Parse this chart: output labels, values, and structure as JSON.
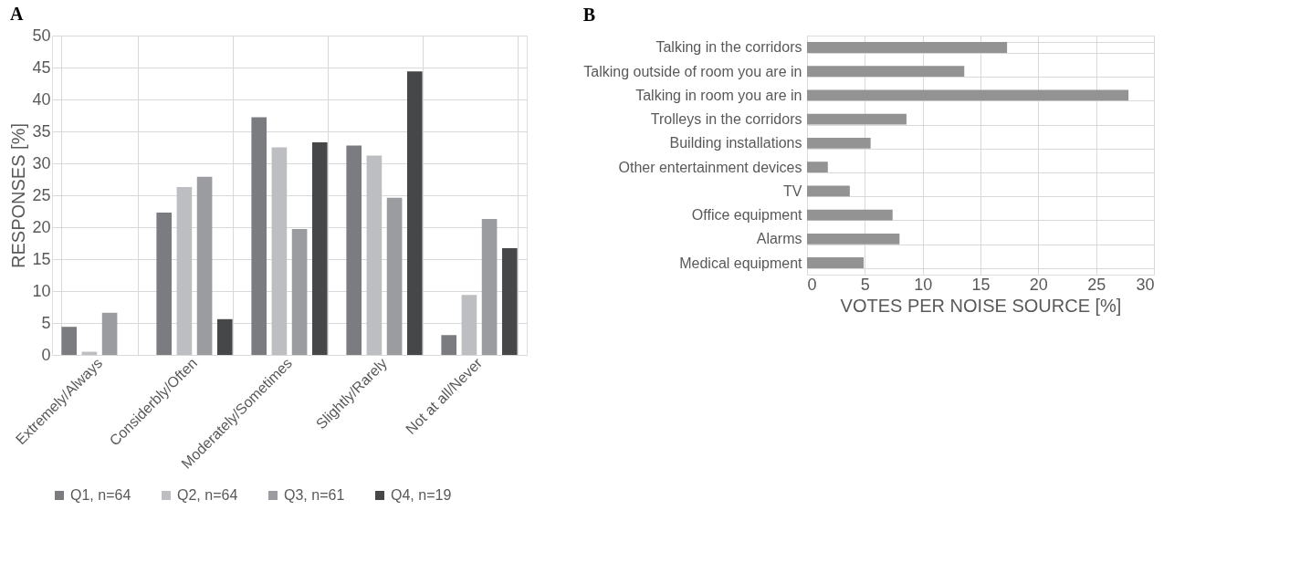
{
  "chart_data": [
    {
      "type": "bar",
      "title": "A",
      "ylabel": "RESPONSES [%]",
      "categories": [
        "Extremely/Always",
        "Considerbly/Often",
        "Moderately/Sometimes",
        "Slightly/Rarely",
        "Not at all/Never"
      ],
      "ylim": [
        0,
        50
      ],
      "yticks": [
        0,
        5,
        10,
        15,
        20,
        25,
        30,
        35,
        40,
        45,
        50
      ],
      "grid": true,
      "legend": "bottom",
      "series": [
        {
          "name": "Q1, n=64",
          "color": "#7b7c80",
          "values": [
            4.4,
            22.3,
            37.2,
            32.8,
            3.1
          ]
        },
        {
          "name": "Q2, n=64",
          "color": "#bdbec2",
          "values": [
            0.5,
            26.3,
            32.5,
            31.2,
            9.4
          ]
        },
        {
          "name": "Q3, n=61",
          "color": "#9b9c9f",
          "values": [
            6.6,
            27.9,
            19.7,
            24.6,
            21.3
          ]
        },
        {
          "name": "Q4, n=19",
          "color": "#464748",
          "values": [
            0,
            5.6,
            33.3,
            44.4,
            16.7
          ]
        }
      ]
    },
    {
      "type": "bar",
      "title": "B",
      "orientation": "horizontal",
      "xlabel": "VOTES PER NOISE SOURCE [%]",
      "categories": [
        "Talking in the corridors",
        "Talking outside of room you are in",
        "Talking in room you are in",
        "Trolleys in the corridors",
        "Building installations",
        "Other entertainment devices",
        "TV",
        "Office equipment",
        "Alarms",
        "Medical equipment"
      ],
      "xlim": [
        0,
        30
      ],
      "xticks": [
        0,
        5,
        10,
        15,
        20,
        25,
        30
      ],
      "grid": true,
      "color": "#939393",
      "values": [
        17.3,
        13.6,
        27.8,
        8.6,
        5.5,
        1.8,
        3.7,
        7.4,
        8.0,
        4.9
      ]
    }
  ]
}
